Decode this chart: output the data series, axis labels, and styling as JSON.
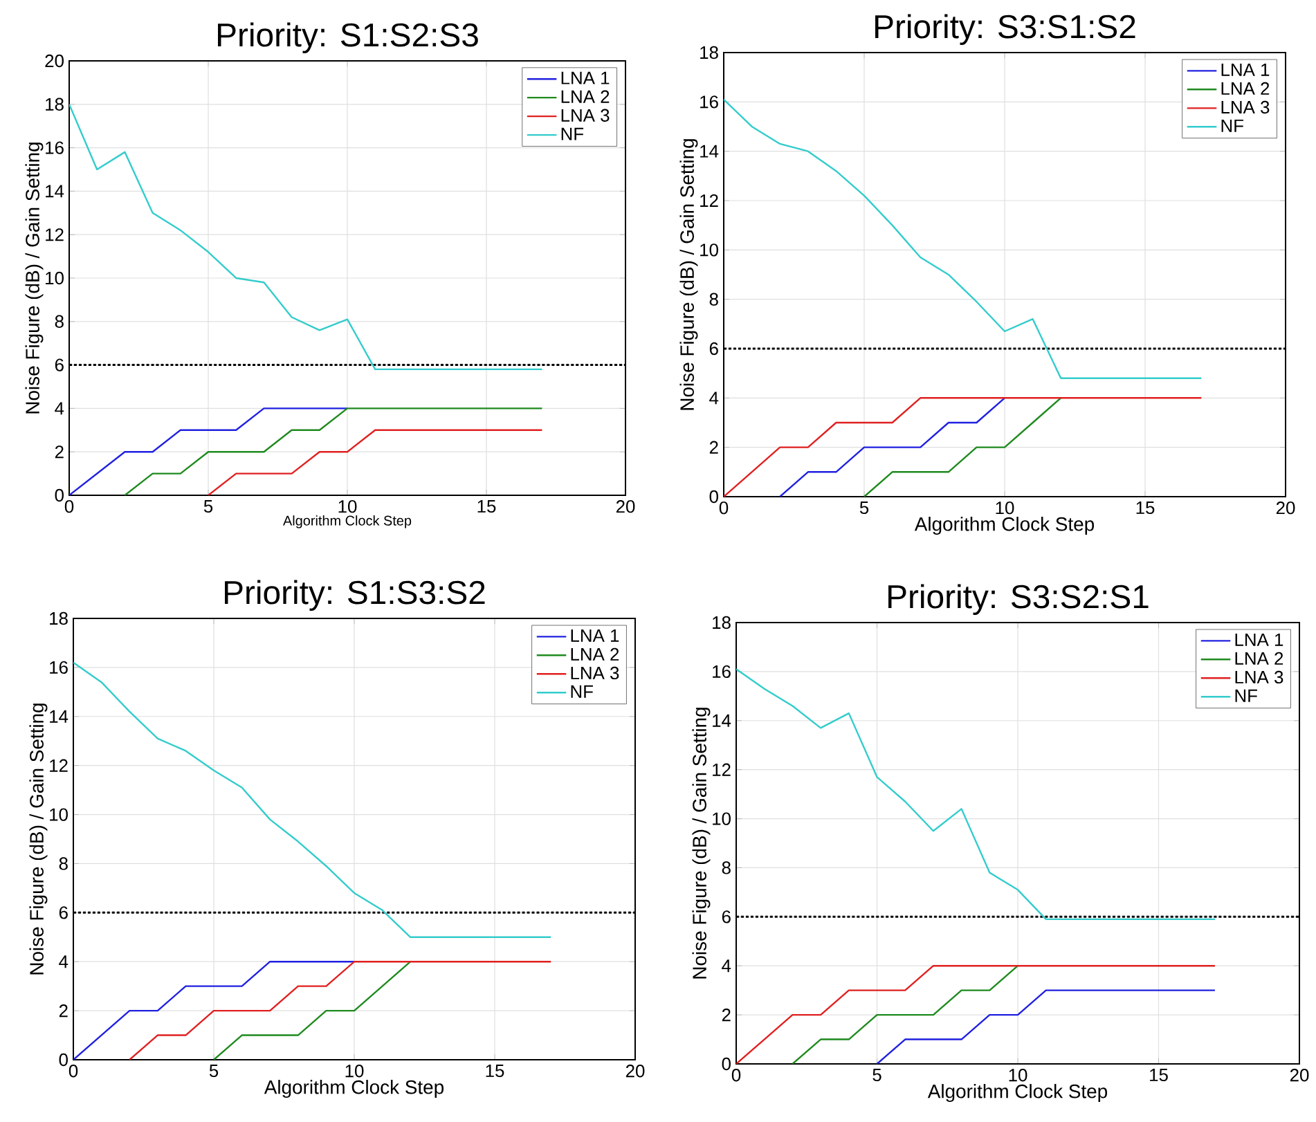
{
  "chart_data": [
    {
      "type": "line",
      "title": "Priority: S1:S2:S3",
      "xlabel": "Algorithm Clock Step",
      "ylabel": "Noise Figure (dB) / Gain Setting",
      "x": [
        0,
        1,
        2,
        3,
        4,
        5,
        6,
        7,
        8,
        9,
        10,
        11,
        12,
        13,
        14,
        15,
        16,
        17
      ],
      "series": [
        {
          "name": "LNA 1",
          "color": "#2020e0",
          "values": [
            0,
            1,
            2,
            2,
            3,
            3,
            3,
            4,
            4,
            4,
            4,
            null,
            null,
            null,
            null,
            null,
            null,
            null
          ]
        },
        {
          "name": "LNA 2",
          "color": "#1e8a1e",
          "values": [
            null,
            null,
            0,
            1,
            1,
            2,
            2,
            2,
            3,
            3,
            4,
            4,
            4,
            4,
            4,
            4,
            4,
            4
          ]
        },
        {
          "name": "LNA 3",
          "color": "#e02020",
          "values": [
            null,
            null,
            null,
            null,
            null,
            0,
            1,
            1,
            1,
            2,
            2,
            3,
            3,
            3,
            3,
            3,
            3,
            3
          ]
        },
        {
          "name": "NF",
          "color": "#33cccc",
          "values": [
            18,
            15,
            15.8,
            13,
            12.2,
            11.2,
            10,
            9.8,
            8.2,
            7.6,
            8.1,
            5.8,
            5.8,
            5.8,
            5.8,
            5.8,
            5.8,
            5.8
          ]
        }
      ],
      "xlim": [
        0,
        20
      ],
      "ylim": [
        0,
        20
      ],
      "xticks": [
        0,
        5,
        10,
        15,
        20
      ],
      "yticks": [
        0,
        2,
        4,
        6,
        8,
        10,
        12,
        14,
        16,
        18,
        20
      ],
      "grid": true,
      "legend": "top right",
      "ref_lines": [
        {
          "axis": "y",
          "value": 6,
          "color": "#000000",
          "line_style": "dotted"
        }
      ]
    },
    {
      "type": "line",
      "title": "Priority: S3:S1:S2",
      "xlabel": "Algorithm Clock Step",
      "ylabel": "Noise Figure (dB) / Gain Setting",
      "x": [
        0,
        1,
        2,
        3,
        4,
        5,
        6,
        7,
        8,
        9,
        10,
        11,
        12,
        13,
        14,
        15,
        16,
        17
      ],
      "series": [
        {
          "name": "LNA 1",
          "color": "#2020e0",
          "values": [
            null,
            null,
            0,
            1,
            1,
            2,
            2,
            2,
            3,
            3,
            4,
            null,
            null,
            null,
            null,
            null,
            null,
            null
          ]
        },
        {
          "name": "LNA 2",
          "color": "#1e8a1e",
          "values": [
            null,
            null,
            null,
            null,
            null,
            0,
            1,
            1,
            1,
            2,
            2,
            3,
            4,
            null,
            null,
            null,
            null,
            null
          ]
        },
        {
          "name": "LNA 3",
          "color": "#e02020",
          "values": [
            0,
            1,
            2,
            2,
            3,
            3,
            3,
            4,
            4,
            4,
            4,
            4,
            4,
            4,
            4,
            4,
            4,
            4
          ]
        },
        {
          "name": "NF",
          "color": "#33cccc",
          "values": [
            16.1,
            15,
            14.3,
            14,
            13.2,
            12.2,
            11,
            9.7,
            9,
            7.9,
            6.7,
            7.2,
            4.8,
            4.8,
            4.8,
            4.8,
            4.8,
            4.8
          ]
        }
      ],
      "xlim": [
        0,
        20
      ],
      "ylim": [
        0,
        18
      ],
      "xticks": [
        0,
        5,
        10,
        15,
        20
      ],
      "yticks": [
        0,
        2,
        4,
        6,
        8,
        10,
        12,
        14,
        16,
        18
      ],
      "grid": true,
      "legend": "top right",
      "ref_lines": [
        {
          "axis": "y",
          "value": 6,
          "color": "#000000",
          "line_style": "dotted"
        }
      ]
    },
    {
      "type": "line",
      "title": "Priority: S1:S3:S2",
      "xlabel": "Algorithm Clock Step",
      "ylabel": "Noise Figure (dB) / Gain Setting",
      "x": [
        0,
        1,
        2,
        3,
        4,
        5,
        6,
        7,
        8,
        9,
        10,
        11,
        12,
        13,
        14,
        15,
        16,
        17
      ],
      "series": [
        {
          "name": "LNA 1",
          "color": "#2020e0",
          "values": [
            0,
            1,
            2,
            2,
            3,
            3,
            3,
            4,
            4,
            4,
            4,
            null,
            null,
            null,
            null,
            null,
            null,
            null
          ]
        },
        {
          "name": "LNA 2",
          "color": "#1e8a1e",
          "values": [
            null,
            null,
            null,
            null,
            null,
            0,
            1,
            1,
            1,
            2,
            2,
            3,
            4,
            null,
            null,
            null,
            null,
            null
          ]
        },
        {
          "name": "LNA 3",
          "color": "#e02020",
          "values": [
            null,
            null,
            0,
            1,
            1,
            2,
            2,
            2,
            3,
            3,
            4,
            4,
            4,
            4,
            4,
            4,
            4,
            4
          ]
        },
        {
          "name": "NF",
          "color": "#33cccc",
          "values": [
            16.2,
            15.4,
            14.2,
            13.1,
            12.6,
            11.8,
            11.1,
            9.8,
            8.9,
            7.9,
            6.8,
            6.1,
            5,
            5,
            5,
            5,
            5,
            5
          ]
        }
      ],
      "xlim": [
        0,
        20
      ],
      "ylim": [
        0,
        18
      ],
      "xticks": [
        0,
        5,
        10,
        15,
        20
      ],
      "yticks": [
        0,
        2,
        4,
        6,
        8,
        10,
        12,
        14,
        16,
        18
      ],
      "grid": true,
      "legend": "top right",
      "ref_lines": [
        {
          "axis": "y",
          "value": 6,
          "color": "#000000",
          "line_style": "dotted"
        }
      ]
    },
    {
      "type": "line",
      "title": "Priority: S3:S2:S1",
      "xlabel": "Algorithm Clock Step",
      "ylabel": "Noise Figure (dB) / Gain Setting",
      "x": [
        0,
        1,
        2,
        3,
        4,
        5,
        6,
        7,
        8,
        9,
        10,
        11,
        12,
        13,
        14,
        15,
        16,
        17
      ],
      "series": [
        {
          "name": "LNA 1",
          "color": "#2020e0",
          "values": [
            null,
            null,
            null,
            null,
            null,
            0,
            1,
            1,
            1,
            2,
            2,
            3,
            3,
            3,
            3,
            3,
            3,
            3
          ]
        },
        {
          "name": "LNA 2",
          "color": "#1e8a1e",
          "values": [
            null,
            null,
            0,
            1,
            1,
            2,
            2,
            2,
            3,
            3,
            4,
            null,
            null,
            null,
            null,
            null,
            null,
            null
          ]
        },
        {
          "name": "LNA 3",
          "color": "#e02020",
          "values": [
            0,
            1,
            2,
            2,
            3,
            3,
            3,
            4,
            4,
            4,
            4,
            4,
            4,
            4,
            4,
            4,
            4,
            4
          ]
        },
        {
          "name": "NF",
          "color": "#33cccc",
          "values": [
            16.1,
            15.3,
            14.6,
            13.7,
            14.3,
            11.7,
            10.7,
            9.5,
            10.4,
            7.8,
            7.1,
            5.9,
            5.9,
            5.9,
            5.9,
            5.9,
            5.9,
            5.9
          ]
        }
      ],
      "xlim": [
        0,
        20
      ],
      "ylim": [
        0,
        18
      ],
      "xticks": [
        0,
        5,
        10,
        15,
        20
      ],
      "yticks": [
        0,
        2,
        4,
        6,
        8,
        10,
        12,
        14,
        16,
        18
      ],
      "grid": true,
      "legend": "top right",
      "ref_lines": [
        {
          "axis": "y",
          "value": 6,
          "color": "#000000",
          "line_style": "dotted"
        }
      ]
    }
  ]
}
